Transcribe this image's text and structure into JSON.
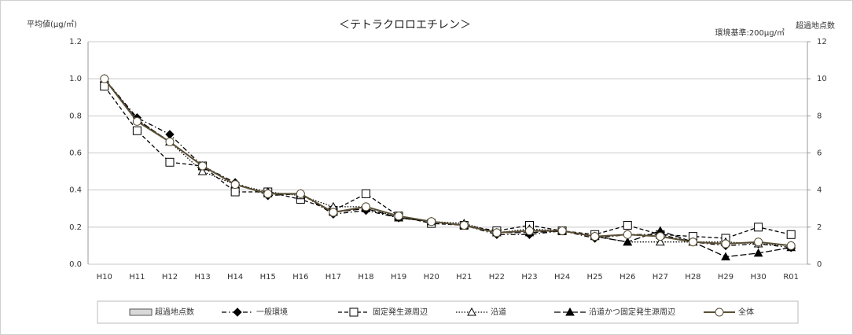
{
  "chart_data": {
    "type": "line",
    "title": "＜テトラクロロエチレン＞",
    "y_label": "平均値(μg/㎥)",
    "y2_label": "超過地点数",
    "annotation": "環境基準:200μg/㎥",
    "categories": [
      "H10",
      "H11",
      "H12",
      "H13",
      "H14",
      "H15",
      "H16",
      "H17",
      "H18",
      "H19",
      "H20",
      "H21",
      "H22",
      "H23",
      "H24",
      "H25",
      "H26",
      "H27",
      "H28",
      "H29",
      "H30",
      "R01"
    ],
    "ylim": [
      0,
      1.2
    ],
    "yticks": [
      {
        "value": 0,
        "label": "0.0"
      },
      0.2,
      0.4,
      0.6,
      0.8,
      {
        "value": 1,
        "label": "1.0"
      },
      1.2
    ],
    "y2lim": [
      0,
      12
    ],
    "y2ticks": [
      0,
      2,
      4,
      6,
      8,
      10,
      12
    ],
    "grid": true,
    "legend": "bottom",
    "series": [
      {
        "name": "超過地点数",
        "type": "bar",
        "axis": "y2",
        "color": "#d9d9d9",
        "values": [
          0,
          0,
          0,
          0,
          0,
          0,
          0,
          0,
          0,
          0,
          0,
          0,
          0,
          0,
          0,
          0,
          0,
          0,
          0,
          0,
          0,
          0
        ]
      },
      {
        "name": "一般環境",
        "color": "#000000",
        "marker": "diamond",
        "line_style": "dashdot",
        "values": [
          1.0,
          0.79,
          0.7,
          0.53,
          0.44,
          0.37,
          0.38,
          0.27,
          0.29,
          0.25,
          0.23,
          0.21,
          0.16,
          0.16,
          0.18,
          0.14,
          0.16,
          0.16,
          0.12,
          0.1,
          0.11,
          0.09
        ]
      },
      {
        "name": "固定発生源周辺",
        "color": "#000000",
        "marker": "square-open",
        "line_style": "dashed",
        "values": [
          0.96,
          0.72,
          0.55,
          0.53,
          0.39,
          0.39,
          0.35,
          0.29,
          0.38,
          0.26,
          0.22,
          0.21,
          0.18,
          0.21,
          0.18,
          0.16,
          0.21,
          0.16,
          0.15,
          0.14,
          0.2,
          0.16
        ]
      },
      {
        "name": "沿道",
        "color": "#000000",
        "marker": "triangle-open",
        "line_style": "dotted",
        "values": [
          1.0,
          0.78,
          0.66,
          0.5,
          0.43,
          0.39,
          0.37,
          0.31,
          0.31,
          0.25,
          0.23,
          0.22,
          0.17,
          0.19,
          0.18,
          0.15,
          0.12,
          0.12,
          0.12,
          0.12,
          0.11,
          0.1
        ]
      },
      {
        "name": "沿道かつ固定発生源周辺",
        "color": "#000000",
        "marker": "triangle",
        "line_style": "longdash",
        "values": [
          1.0,
          0.78,
          0.66,
          0.53,
          0.43,
          0.38,
          0.38,
          0.28,
          0.3,
          0.25,
          0.23,
          0.21,
          0.17,
          0.17,
          0.18,
          0.15,
          0.12,
          0.18,
          0.12,
          0.04,
          0.06,
          0.09
        ]
      },
      {
        "name": "全体",
        "color": "#5a4f36",
        "marker": "circle-open",
        "line_style": "solid",
        "values": [
          1.0,
          0.77,
          0.66,
          0.53,
          0.43,
          0.38,
          0.38,
          0.28,
          0.31,
          0.26,
          0.23,
          0.21,
          0.17,
          0.18,
          0.18,
          0.15,
          0.16,
          0.15,
          0.12,
          0.11,
          0.12,
          0.1
        ]
      }
    ]
  }
}
